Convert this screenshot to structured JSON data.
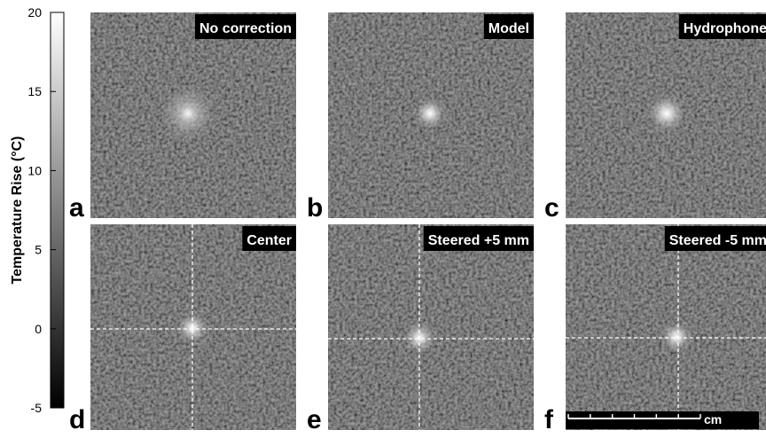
{
  "colorbar": {
    "label": "Temperature Rise (°C)",
    "lim": [
      -5,
      20
    ],
    "ticks": [
      -5,
      0,
      5,
      10,
      15,
      20
    ]
  },
  "panels": [
    {
      "letter": "a",
      "title": "No correction"
    },
    {
      "letter": "b",
      "title": "Model"
    },
    {
      "letter": "c",
      "title": "Hydrophone"
    },
    {
      "letter": "d",
      "title": "Center"
    },
    {
      "letter": "e",
      "title": "Steered +5 mm"
    },
    {
      "letter": "f",
      "title": "Steered -5 mm"
    }
  ],
  "scale_bar": {
    "label": "cm"
  }
}
